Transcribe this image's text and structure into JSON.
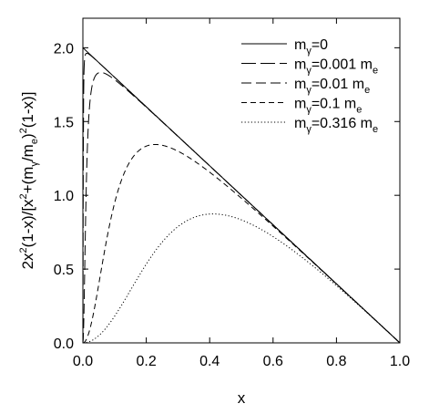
{
  "chart_data": {
    "type": "line",
    "title": "",
    "xlabel": "x",
    "ylabel": "2x²(1-x)/[x²+(mγ/me)²(1-x)]",
    "xlim": [
      0.0,
      1.0
    ],
    "ylim": [
      0.0,
      2.2
    ],
    "x_ticks": [
      "0.0",
      "0.2",
      "0.4",
      "0.6",
      "0.8",
      "1.0"
    ],
    "y_ticks": [
      "0.0",
      "0.5",
      "1.0",
      "1.5",
      "2.0"
    ],
    "x_tick_values": [
      0.0,
      0.2,
      0.4,
      0.6,
      0.8,
      1.0
    ],
    "y_tick_values": [
      0.0,
      0.5,
      1.0,
      1.5,
      2.0
    ],
    "grid": false,
    "legend_position": "top-right",
    "formula": "2x^2(1-x)/[x^2+(m/me)^2(1-x)]",
    "series": [
      {
        "name": "mγ=0",
        "ratio": 0.0,
        "style": "solid",
        "legend": {
          "main": "m",
          "sub": "γ",
          "rest": "=0",
          "unit": "",
          "unit_sub": ""
        }
      },
      {
        "name": "mγ=0.001 me",
        "ratio": 0.001,
        "style": "longdash",
        "legend": {
          "main": "m",
          "sub": "γ",
          "rest": "=0.001 m",
          "unit": "",
          "unit_sub": "e"
        }
      },
      {
        "name": "mγ=0.01 me",
        "ratio": 0.01,
        "style": "dash",
        "legend": {
          "main": "m",
          "sub": "γ",
          "rest": "=0.01 m",
          "unit": "",
          "unit_sub": "e"
        }
      },
      {
        "name": "mγ=0.1 me",
        "ratio": 0.1,
        "style": "shortdash",
        "legend": {
          "main": "m",
          "sub": "γ",
          "rest": "=0.1 m",
          "unit": "",
          "unit_sub": "e"
        }
      },
      {
        "name": "mγ=0.316 me",
        "ratio": 0.316,
        "style": "dotted",
        "legend": {
          "main": "m",
          "sub": "γ",
          "rest": "=0.316 m",
          "unit": "",
          "unit_sub": "e"
        }
      }
    ]
  }
}
